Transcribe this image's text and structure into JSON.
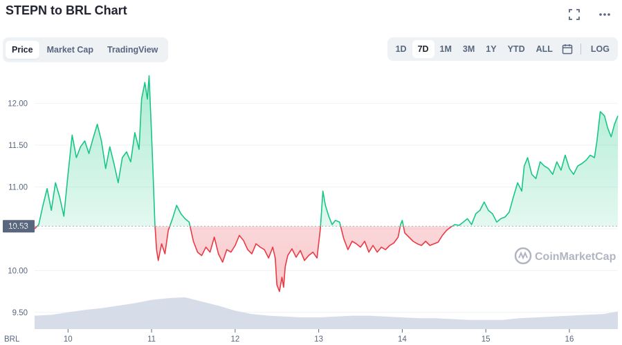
{
  "title": "STEPN to BRL Chart",
  "toolbar": {
    "fullscreen_icon": "fullscreen-icon",
    "more_icon": "more-horizontal-icon"
  },
  "tabs": [
    {
      "label": "Price",
      "active": true
    },
    {
      "label": "Market Cap",
      "active": false
    },
    {
      "label": "TradingView",
      "active": false
    }
  ],
  "ranges": [
    {
      "label": "1D",
      "active": false
    },
    {
      "label": "7D",
      "active": true
    },
    {
      "label": "1M",
      "active": false
    },
    {
      "label": "3M",
      "active": false
    },
    {
      "label": "1Y",
      "active": false
    },
    {
      "label": "YTD",
      "active": false
    },
    {
      "label": "ALL",
      "active": false
    }
  ],
  "calendar_icon": "calendar-icon",
  "log_label": "LOG",
  "watermark": "CoinMarketCap",
  "colors": {
    "up": "#16c784",
    "down": "#ea3943",
    "volume": "#cfd6e4",
    "grid": "#eff2f5",
    "baseline_label_bg": "#58667e"
  },
  "chart_data": {
    "type": "area",
    "currency_label": "BRL",
    "baseline": 10.53,
    "baseline_label": "10.53",
    "ylim": [
      9.3,
      12.45
    ],
    "y_ticks": [
      9.5,
      10.0,
      10.5,
      11.0,
      11.5,
      12.0
    ],
    "y_tick_labels": [
      "9.50",
      "10.00",
      "10.50",
      "11.00",
      "11.50",
      "12.00"
    ],
    "xlim": [
      9.6,
      16.58
    ],
    "x_ticks": [
      10,
      11,
      12,
      13,
      14,
      15,
      16
    ],
    "x_tick_labels": [
      "10",
      "11",
      "12",
      "13",
      "14",
      "15",
      "16"
    ],
    "grid": true,
    "series": [
      {
        "values": [
          [
            9.6,
            10.5
          ],
          [
            9.65,
            10.55
          ],
          [
            9.7,
            10.78
          ],
          [
            9.75,
            10.98
          ],
          [
            9.8,
            10.72
          ],
          [
            9.85,
            11.05
          ],
          [
            9.9,
            10.88
          ],
          [
            9.95,
            10.65
          ],
          [
            10.0,
            11.15
          ],
          [
            10.05,
            11.62
          ],
          [
            10.1,
            11.35
          ],
          [
            10.15,
            11.48
          ],
          [
            10.2,
            11.55
          ],
          [
            10.25,
            11.4
          ],
          [
            10.3,
            11.58
          ],
          [
            10.35,
            11.75
          ],
          [
            10.4,
            11.55
          ],
          [
            10.45,
            11.22
          ],
          [
            10.5,
            11.48
          ],
          [
            10.55,
            11.28
          ],
          [
            10.6,
            11.05
          ],
          [
            10.65,
            11.35
          ],
          [
            10.7,
            11.42
          ],
          [
            10.75,
            11.3
          ],
          [
            10.8,
            11.65
          ],
          [
            10.85,
            11.45
          ],
          [
            10.88,
            12.05
          ],
          [
            10.92,
            12.25
          ],
          [
            10.95,
            12.05
          ],
          [
            10.97,
            12.33
          ],
          [
            11.0,
            11.62
          ],
          [
            11.02,
            11.1
          ],
          [
            11.04,
            10.55
          ],
          [
            11.06,
            10.25
          ],
          [
            11.08,
            10.12
          ],
          [
            11.12,
            10.32
          ],
          [
            11.16,
            10.2
          ],
          [
            11.2,
            10.48
          ],
          [
            11.25,
            10.62
          ],
          [
            11.3,
            10.78
          ],
          [
            11.35,
            10.68
          ],
          [
            11.4,
            10.62
          ],
          [
            11.45,
            10.58
          ],
          [
            11.5,
            10.35
          ],
          [
            11.55,
            10.22
          ],
          [
            11.6,
            10.18
          ],
          [
            11.65,
            10.28
          ],
          [
            11.7,
            10.22
          ],
          [
            11.75,
            10.4
          ],
          [
            11.8,
            10.2
          ],
          [
            11.85,
            10.1
          ],
          [
            11.9,
            10.25
          ],
          [
            11.95,
            10.22
          ],
          [
            12.0,
            10.3
          ],
          [
            12.05,
            10.42
          ],
          [
            12.1,
            10.36
          ],
          [
            12.15,
            10.25
          ],
          [
            12.2,
            10.2
          ],
          [
            12.25,
            10.32
          ],
          [
            12.3,
            10.28
          ],
          [
            12.35,
            10.25
          ],
          [
            12.4,
            10.15
          ],
          [
            12.45,
            10.28
          ],
          [
            12.48,
            10.15
          ],
          [
            12.5,
            9.83
          ],
          [
            12.53,
            9.75
          ],
          [
            12.56,
            9.92
          ],
          [
            12.58,
            9.8
          ],
          [
            12.6,
            10.05
          ],
          [
            12.63,
            10.18
          ],
          [
            12.68,
            10.26
          ],
          [
            12.73,
            10.16
          ],
          [
            12.78,
            10.24
          ],
          [
            12.83,
            10.12
          ],
          [
            12.88,
            10.18
          ],
          [
            12.93,
            10.22
          ],
          [
            12.98,
            10.15
          ],
          [
            13.02,
            10.5
          ],
          [
            13.05,
            10.95
          ],
          [
            13.08,
            10.78
          ],
          [
            13.12,
            10.65
          ],
          [
            13.16,
            10.55
          ],
          [
            13.2,
            10.6
          ],
          [
            13.25,
            10.58
          ],
          [
            13.3,
            10.38
          ],
          [
            13.35,
            10.25
          ],
          [
            13.4,
            10.35
          ],
          [
            13.45,
            10.32
          ],
          [
            13.5,
            10.28
          ],
          [
            13.55,
            10.35
          ],
          [
            13.6,
            10.22
          ],
          [
            13.65,
            10.3
          ],
          [
            13.7,
            10.22
          ],
          [
            13.75,
            10.28
          ],
          [
            13.8,
            10.25
          ],
          [
            13.85,
            10.3
          ],
          [
            13.9,
            10.33
          ],
          [
            13.95,
            10.4
          ],
          [
            13.98,
            10.55
          ],
          [
            14.0,
            10.6
          ],
          [
            14.03,
            10.45
          ],
          [
            14.08,
            10.4
          ],
          [
            14.13,
            10.35
          ],
          [
            14.18,
            10.32
          ],
          [
            14.23,
            10.3
          ],
          [
            14.28,
            10.35
          ],
          [
            14.33,
            10.3
          ],
          [
            14.38,
            10.32
          ],
          [
            14.43,
            10.34
          ],
          [
            14.48,
            10.42
          ],
          [
            14.53,
            10.48
          ],
          [
            14.58,
            10.52
          ],
          [
            14.63,
            10.55
          ],
          [
            14.68,
            10.54
          ],
          [
            14.73,
            10.58
          ],
          [
            14.78,
            10.62
          ],
          [
            14.83,
            10.55
          ],
          [
            14.88,
            10.68
          ],
          [
            14.93,
            10.72
          ],
          [
            14.98,
            10.82
          ],
          [
            15.03,
            10.72
          ],
          [
            15.08,
            10.68
          ],
          [
            15.13,
            10.58
          ],
          [
            15.18,
            10.62
          ],
          [
            15.23,
            10.64
          ],
          [
            15.28,
            10.7
          ],
          [
            15.33,
            10.88
          ],
          [
            15.38,
            11.05
          ],
          [
            15.43,
            10.95
          ],
          [
            15.46,
            11.25
          ],
          [
            15.5,
            11.35
          ],
          [
            15.55,
            11.15
          ],
          [
            15.6,
            11.1
          ],
          [
            15.65,
            11.3
          ],
          [
            15.7,
            11.25
          ],
          [
            15.75,
            11.22
          ],
          [
            15.8,
            11.15
          ],
          [
            15.85,
            11.3
          ],
          [
            15.9,
            11.2
          ],
          [
            15.95,
            11.38
          ],
          [
            16.0,
            11.22
          ],
          [
            16.05,
            11.15
          ],
          [
            16.1,
            11.25
          ],
          [
            16.15,
            11.28
          ],
          [
            16.2,
            11.32
          ],
          [
            16.25,
            11.38
          ],
          [
            16.3,
            11.35
          ],
          [
            16.33,
            11.55
          ],
          [
            16.37,
            11.9
          ],
          [
            16.42,
            11.85
          ],
          [
            16.46,
            11.7
          ],
          [
            16.5,
            11.6
          ],
          [
            16.54,
            11.75
          ],
          [
            16.58,
            11.85
          ]
        ]
      }
    ],
    "volume_values": [
      [
        9.6,
        9.46
      ],
      [
        9.8,
        9.47
      ],
      [
        10.0,
        9.5
      ],
      [
        10.2,
        9.53
      ],
      [
        10.4,
        9.55
      ],
      [
        10.6,
        9.58
      ],
      [
        10.8,
        9.61
      ],
      [
        11.0,
        9.65
      ],
      [
        11.2,
        9.67
      ],
      [
        11.4,
        9.68
      ],
      [
        11.6,
        9.63
      ],
      [
        11.8,
        9.58
      ],
      [
        12.0,
        9.52
      ],
      [
        12.2,
        9.48
      ],
      [
        12.4,
        9.46
      ],
      [
        12.6,
        9.45
      ],
      [
        12.8,
        9.44
      ],
      [
        13.0,
        9.44
      ],
      [
        13.2,
        9.45
      ],
      [
        13.4,
        9.46
      ],
      [
        13.6,
        9.46
      ],
      [
        13.8,
        9.45
      ],
      [
        14.0,
        9.44
      ],
      [
        14.2,
        9.43
      ],
      [
        14.4,
        9.43
      ],
      [
        14.6,
        9.42
      ],
      [
        14.8,
        9.41
      ],
      [
        15.0,
        9.41
      ],
      [
        15.2,
        9.41
      ],
      [
        15.4,
        9.43
      ],
      [
        15.6,
        9.44
      ],
      [
        15.8,
        9.45
      ],
      [
        16.0,
        9.46
      ],
      [
        16.2,
        9.47
      ],
      [
        16.4,
        9.48
      ],
      [
        16.58,
        9.51
      ]
    ]
  }
}
